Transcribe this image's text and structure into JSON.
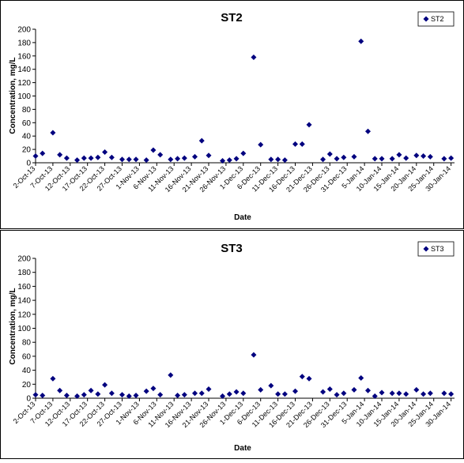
{
  "chart_data": [
    {
      "type": "scatter",
      "title": "ST2",
      "xlabel": "Date",
      "ylabel": "Concentration, mg/L",
      "ylim": [
        0,
        200
      ],
      "yticks": [
        "0",
        "20",
        "40",
        "60",
        "80",
        "100",
        "120",
        "140",
        "160",
        "180",
        "200"
      ],
      "xlim": [
        "2013-10-02",
        "2014-01-31"
      ],
      "xtick_labels": [
        "2-Oct-13",
        "7-Oct-13",
        "12-Oct-13",
        "17-Oct-13",
        "22-Oct-13",
        "27-Oct-13",
        "1-Nov-13",
        "6-Nov-13",
        "11-Nov-13",
        "16-Nov-13",
        "21-Nov-13",
        "26-Nov-13",
        "1-Dec-13",
        "6-Dec-13",
        "11-Dec-13",
        "16-Dec-13",
        "21-Dec-13",
        "26-Dec-13",
        "31-Dec-13",
        "5-Jan-14",
        "10-Jan-14",
        "15-Jan-14",
        "20-Jan-14",
        "25-Jan-14",
        "30-Jan-14"
      ],
      "legend_position": "top-right",
      "grid": false,
      "marker_color": "#00007f",
      "series": [
        {
          "name": "ST2",
          "x": [
            "2013-10-02",
            "2013-10-04",
            "2013-10-07",
            "2013-10-09",
            "2013-10-11",
            "2013-10-14",
            "2013-10-16",
            "2013-10-18",
            "2013-10-20",
            "2013-10-22",
            "2013-10-24",
            "2013-10-27",
            "2013-10-29",
            "2013-10-31",
            "2013-11-03",
            "2013-11-05",
            "2013-11-07",
            "2013-11-10",
            "2013-11-12",
            "2013-11-14",
            "2013-11-17",
            "2013-11-19",
            "2013-11-21",
            "2013-11-25",
            "2013-11-27",
            "2013-11-29",
            "2013-12-01",
            "2013-12-04",
            "2013-12-06",
            "2013-12-09",
            "2013-12-11",
            "2013-12-13",
            "2013-12-16",
            "2013-12-18",
            "2013-12-20",
            "2013-12-24",
            "2013-12-26",
            "2013-12-28",
            "2013-12-30",
            "2014-01-02",
            "2014-01-04",
            "2014-01-06",
            "2014-01-08",
            "2014-01-10",
            "2014-01-13",
            "2014-01-15",
            "2014-01-17",
            "2014-01-20",
            "2014-01-22",
            "2014-01-24",
            "2014-01-28",
            "2014-01-30"
          ],
          "y": [
            10,
            14,
            45,
            12,
            7,
            4,
            7,
            7,
            8,
            16,
            8,
            5,
            5,
            5,
            4,
            19,
            12,
            5,
            6,
            7,
            9,
            33,
            11,
            3,
            4,
            6,
            14,
            158,
            27,
            5,
            5,
            4,
            28,
            28,
            57,
            5,
            13,
            6,
            8,
            9,
            182,
            47,
            6,
            6,
            6,
            12,
            7,
            11,
            10,
            9,
            6,
            7
          ]
        }
      ]
    },
    {
      "type": "scatter",
      "title": "ST3",
      "xlabel": "Date",
      "ylabel": "Concentration, mg/L",
      "ylim": [
        0,
        200
      ],
      "yticks": [
        "0",
        "20",
        "40",
        "60",
        "80",
        "100",
        "120",
        "140",
        "160",
        "180",
        "200"
      ],
      "xlim": [
        "2013-10-02",
        "2014-01-31"
      ],
      "xtick_labels": [
        "2-Oct-13",
        "7-Oct-13",
        "12-Oct-13",
        "17-Oct-13",
        "22-Oct-13",
        "27-Oct-13",
        "1-Nov-13",
        "6-Nov-13",
        "11-Nov-13",
        "16-Nov-13",
        "21-Nov-13",
        "26-Nov-13",
        "1-Dec-13",
        "6-Dec-13",
        "11-Dec-13",
        "16-Dec-13",
        "21-Dec-13",
        "26-Dec-13",
        "31-Dec-13",
        "5-Jan-14",
        "10-Jan-14",
        "15-Jan-14",
        "20-Jan-14",
        "25-Jan-14",
        "30-Jan-14"
      ],
      "legend_position": "top-right",
      "grid": false,
      "marker_color": "#00007f",
      "series": [
        {
          "name": "ST3",
          "x": [
            "2013-10-02",
            "2013-10-04",
            "2013-10-07",
            "2013-10-09",
            "2013-10-11",
            "2013-10-14",
            "2013-10-16",
            "2013-10-18",
            "2013-10-20",
            "2013-10-22",
            "2013-10-24",
            "2013-10-27",
            "2013-10-29",
            "2013-10-31",
            "2013-11-03",
            "2013-11-05",
            "2013-11-07",
            "2013-11-10",
            "2013-11-12",
            "2013-11-14",
            "2013-11-17",
            "2013-11-19",
            "2013-11-21",
            "2013-11-25",
            "2013-11-27",
            "2013-11-29",
            "2013-12-01",
            "2013-12-04",
            "2013-12-06",
            "2013-12-09",
            "2013-12-11",
            "2013-12-13",
            "2013-12-16",
            "2013-12-18",
            "2013-12-20",
            "2013-12-24",
            "2013-12-26",
            "2013-12-28",
            "2013-12-30",
            "2014-01-02",
            "2014-01-04",
            "2014-01-06",
            "2014-01-08",
            "2014-01-10",
            "2014-01-13",
            "2014-01-15",
            "2014-01-17",
            "2014-01-20",
            "2014-01-22",
            "2014-01-24",
            "2014-01-28",
            "2014-01-30"
          ],
          "y": [
            5,
            4,
            28,
            11,
            4,
            3,
            5,
            11,
            6,
            19,
            7,
            5,
            3,
            4,
            10,
            14,
            5,
            33,
            4,
            5,
            7,
            7,
            13,
            3,
            6,
            9,
            7,
            62,
            12,
            18,
            6,
            6,
            10,
            31,
            28,
            9,
            13,
            5,
            7,
            12,
            29,
            11,
            3,
            8,
            7,
            7,
            6,
            12,
            6,
            7,
            7,
            6
          ]
        }
      ]
    }
  ]
}
